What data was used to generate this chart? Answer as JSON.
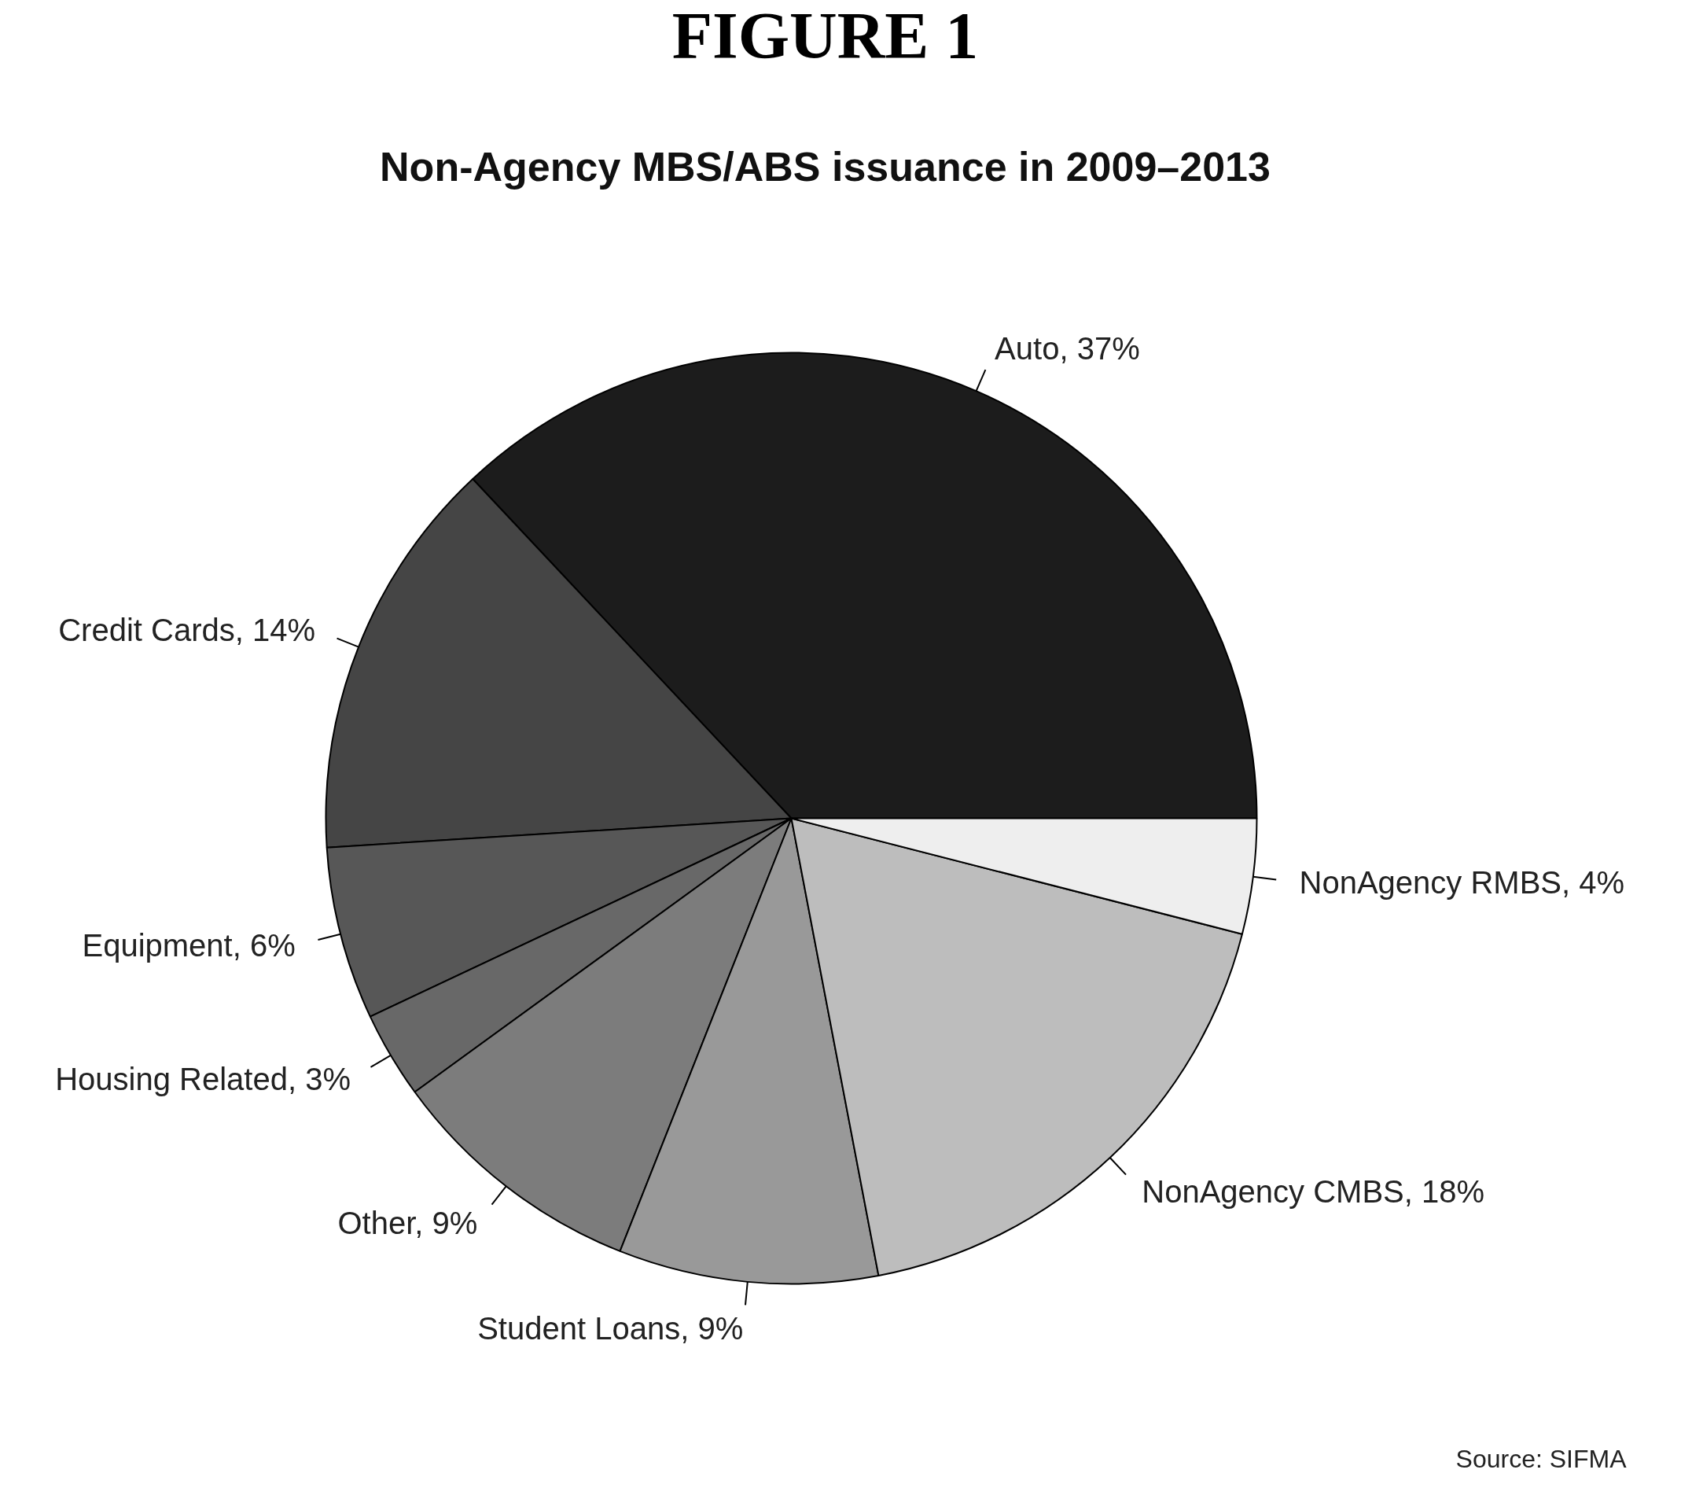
{
  "chart_data": {
    "type": "pie",
    "title": "FIGURE 1",
    "subtitle": "Non-Agency MBS/ABS issuance in 2009–2013",
    "categories": [
      "Auto",
      "Credit Cards",
      "Equipment",
      "Housing Related",
      "Other",
      "Student Loans",
      "NonAgency CMBS",
      "NonAgency RMBS"
    ],
    "values": [
      37,
      14,
      6,
      3,
      9,
      9,
      18,
      4
    ],
    "value_labels": [
      "37%",
      "14%",
      "6%",
      "3%",
      "9%",
      "9%",
      "18%",
      "4%"
    ],
    "colors": [
      "#1c1c1c",
      "#454545",
      "#575757",
      "#686868",
      "#7c7c7c",
      "#999999",
      "#bdbdbd",
      "#eeeeee"
    ],
    "annotations": [
      "Source: SIFMA"
    ]
  }
}
